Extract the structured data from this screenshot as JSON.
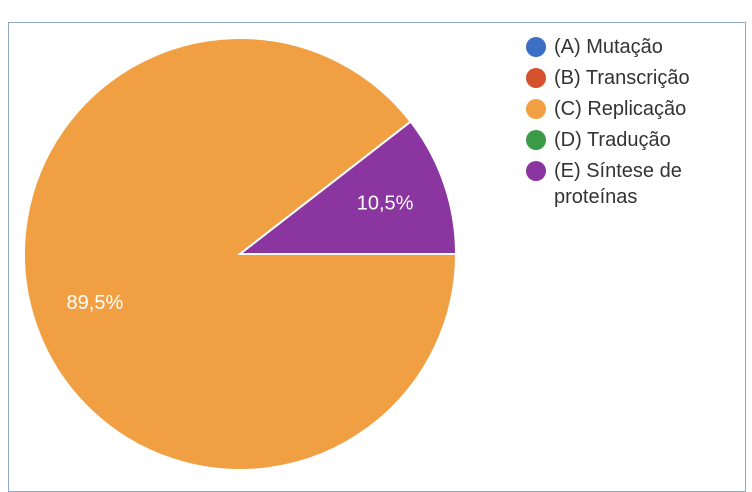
{
  "chart_data": {
    "type": "pie",
    "categories": [
      "(A) Mutação",
      "(B) Transcrição",
      "(C) Replicação",
      "(D) Tradução",
      "(E) Síntese de proteínas"
    ],
    "values": [
      0,
      0,
      89.5,
      0,
      10.5
    ],
    "value_labels": [
      null,
      null,
      "89,5%",
      null,
      "10,5%"
    ],
    "colors": [
      "#3a6fc4",
      "#d4512e",
      "#f0a043",
      "#3a9a48",
      "#8b35a0"
    ]
  }
}
